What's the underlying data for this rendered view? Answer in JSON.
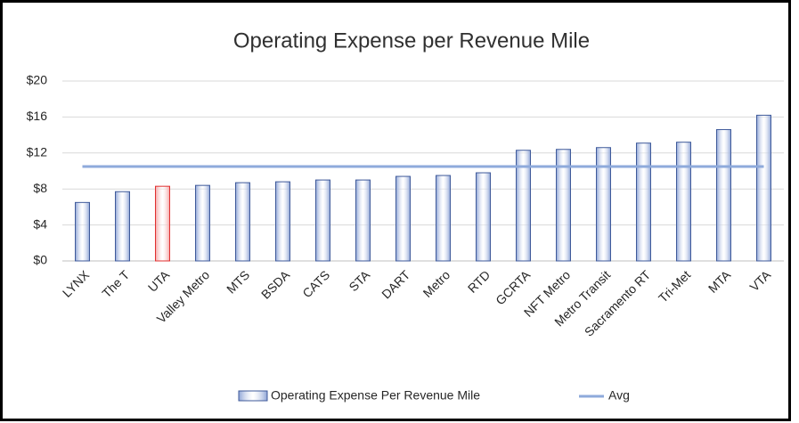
{
  "chart_data": {
    "type": "bar",
    "title": "Operating Expense per Revenue Mile",
    "categories": [
      "LYNX",
      "The T",
      "UTA",
      "Valley Metro",
      "MTS",
      "BSDA",
      "CATS",
      "STA",
      "DART",
      "Metro",
      "RTD",
      "GCRTA",
      "NFT Metro",
      "Metro Transit",
      "Sacramento RT",
      "Tri-Met",
      "MTA",
      "VTA"
    ],
    "series": [
      {
        "name": "Operating Expense Per Revenue Mile",
        "type": "bar",
        "color": "#8ea4d6",
        "colors": [
          "#8ea4d6",
          "#8ea4d6",
          "#f4a6a6",
          "#8ea4d6",
          "#8ea4d6",
          "#8ea4d6",
          "#8ea4d6",
          "#8ea4d6",
          "#8ea4d6",
          "#8ea4d6",
          "#8ea4d6",
          "#8ea4d6",
          "#8ea4d6",
          "#8ea4d6",
          "#8ea4d6",
          "#8ea4d6",
          "#8ea4d6",
          "#8ea4d6"
        ],
        "values": [
          6.5,
          7.7,
          8.3,
          8.4,
          8.7,
          8.8,
          9.0,
          9.0,
          9.4,
          9.5,
          9.8,
          12.3,
          12.4,
          12.6,
          13.1,
          13.2,
          14.6,
          16.2
        ]
      },
      {
        "name": "Avg",
        "type": "line",
        "color": "#8eaadb",
        "value": 10.5
      }
    ],
    "ylim": [
      0,
      20
    ],
    "yticks": [
      {
        "value": 0,
        "label": "$0"
      },
      {
        "value": 4,
        "label": "$4"
      },
      {
        "value": 8,
        "label": "$8"
      },
      {
        "value": 12,
        "label": "$12"
      },
      {
        "value": 16,
        "label": "$16"
      },
      {
        "value": 20,
        "label": "$20"
      }
    ],
    "grid": true
  }
}
